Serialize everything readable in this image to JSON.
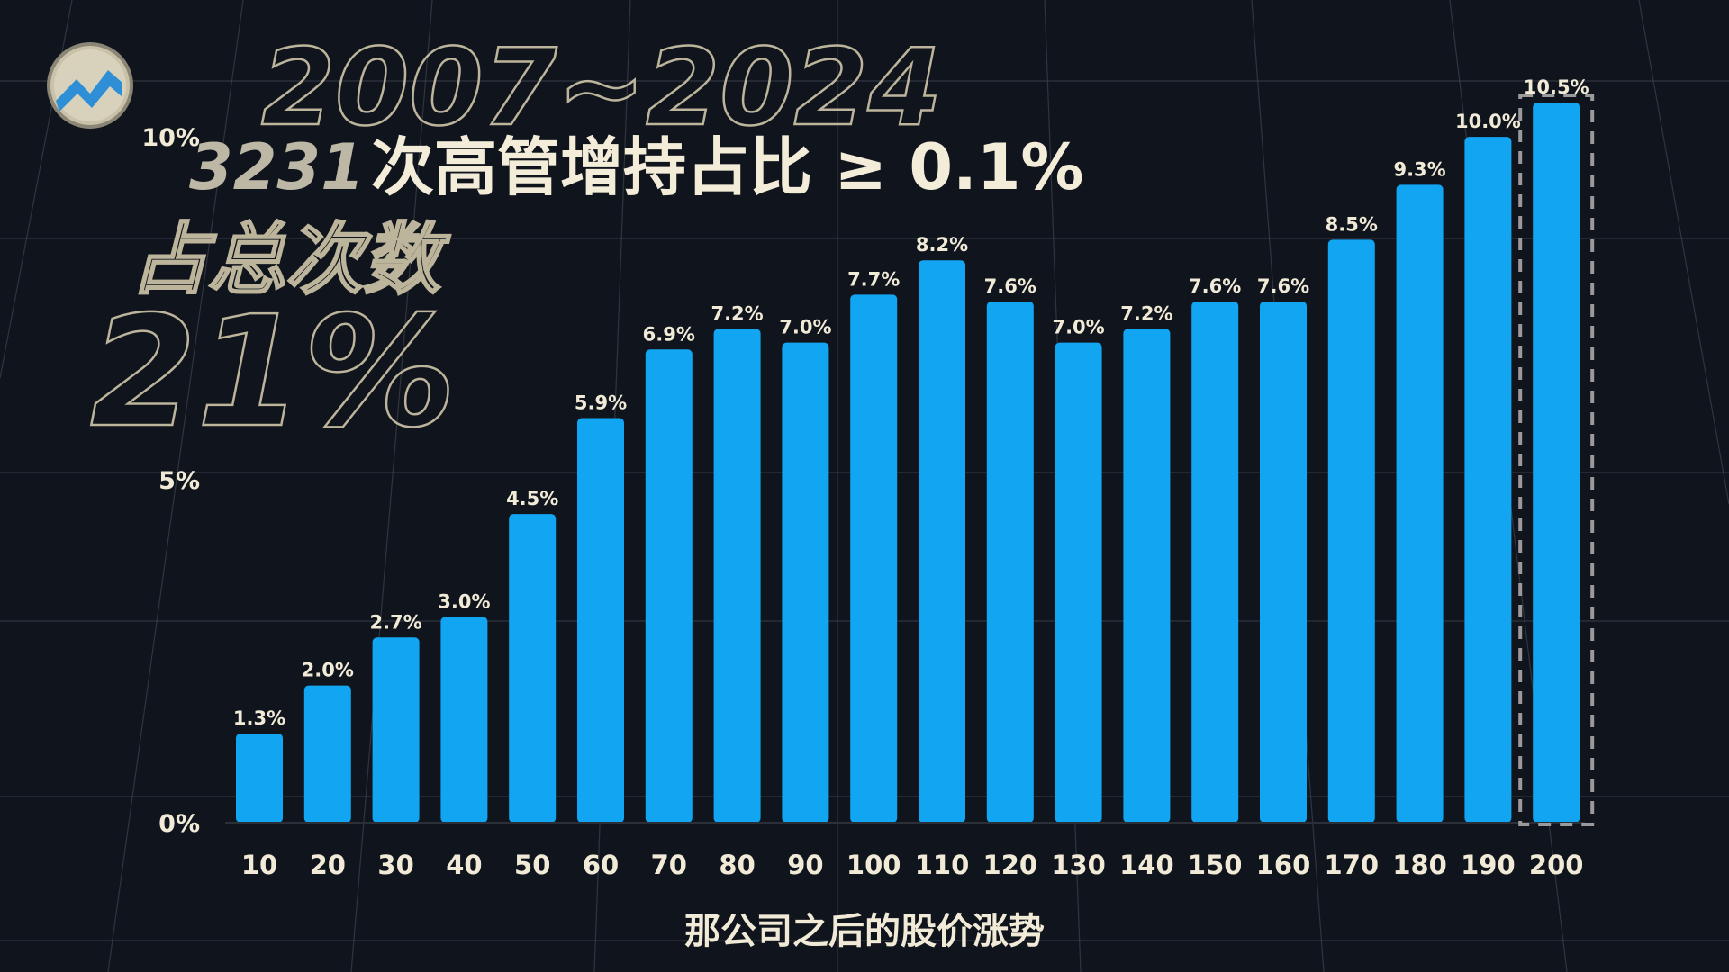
{
  "headline": {
    "period": "2007~2024",
    "count": "3231",
    "title": "次高管增持占比 ≥ 0.1%",
    "share_label": "占总次数",
    "share_value": "21%"
  },
  "logo": {
    "icon": "stock-zigzag-icon"
  },
  "colors": {
    "background": "#10141d",
    "bar": "#12a5f2",
    "text": "#f1ead7",
    "highlight_box": "#9a9a9a"
  },
  "chart_data": {
    "type": "bar",
    "title": "",
    "xlabel": "那公司之后的股价涨势",
    "ylabel": "",
    "ylim": [
      0,
      10.5
    ],
    "yticks": [
      {
        "value": 0,
        "label": "0%"
      },
      {
        "value": 5,
        "label": "5%"
      },
      {
        "value": 10,
        "label": "10%"
      }
    ],
    "categories": [
      "10",
      "20",
      "30",
      "40",
      "50",
      "60",
      "70",
      "80",
      "90",
      "100",
      "110",
      "120",
      "130",
      "140",
      "150",
      "160",
      "170",
      "180",
      "190",
      "200"
    ],
    "values": [
      1.3,
      2.0,
      2.7,
      3.0,
      4.5,
      5.9,
      6.9,
      7.2,
      7.0,
      7.7,
      8.2,
      7.6,
      7.0,
      7.2,
      7.6,
      7.6,
      8.5,
      9.3,
      10.0,
      10.5
    ],
    "value_labels": [
      "1.3%",
      "2.0%",
      "2.7%",
      "3.0%",
      "4.5%",
      "5.9%",
      "6.9%",
      "7.2%",
      "7.0%",
      "7.7%",
      "8.2%",
      "7.6%",
      "7.0%",
      "7.2%",
      "7.6%",
      "7.6%",
      "8.5%",
      "9.3%",
      "10.0%",
      "10.5%"
    ],
    "highlighted_category": "200",
    "grid": true,
    "legend": "none"
  }
}
